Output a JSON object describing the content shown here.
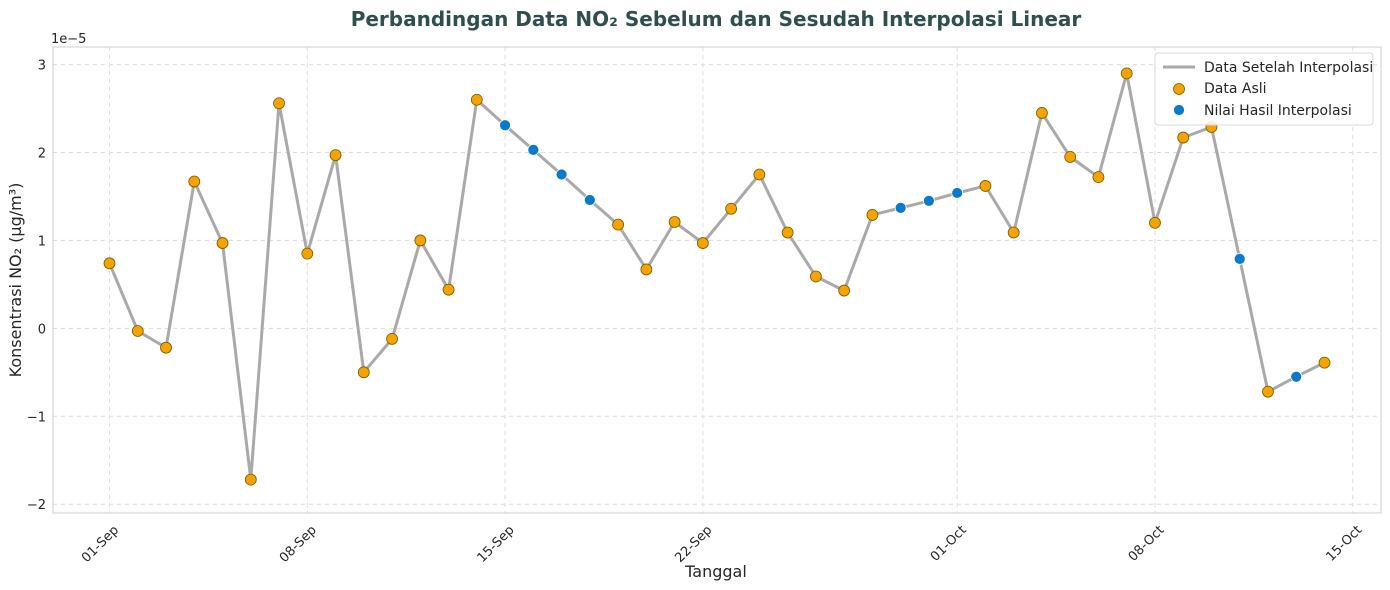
{
  "chart_data": {
    "type": "line",
    "title": "Perbandingan Data NO₂ Sebelum dan Sesudah Interpolasi Linear",
    "xlabel": "Tanggal",
    "ylabel": "Konsentrasi NO₂ (µg/m³)",
    "y_offset_text": "1e−5",
    "xlim": [
      "2023-08-30",
      "2023-10-16"
    ],
    "ylim": [
      -2.1e-05,
      3.2e-05
    ],
    "x_ticks": [
      {
        "date": "2023-09-01",
        "label": "01-Sep"
      },
      {
        "date": "2023-09-08",
        "label": "08-Sep"
      },
      {
        "date": "2023-09-15",
        "label": "15-Sep"
      },
      {
        "date": "2023-09-22",
        "label": "22-Sep"
      },
      {
        "date": "2023-10-01",
        "label": "01-Oct"
      },
      {
        "date": "2023-10-08",
        "label": "08-Oct"
      },
      {
        "date": "2023-10-15",
        "label": "15-Oct"
      }
    ],
    "y_ticks": [
      {
        "value": -2e-05,
        "label": "−2"
      },
      {
        "value": -1e-05,
        "label": "−1"
      },
      {
        "value": 0,
        "label": "0"
      },
      {
        "value": 1e-05,
        "label": "1"
      },
      {
        "value": 2e-05,
        "label": "2"
      },
      {
        "value": 3e-05,
        "label": "3"
      }
    ],
    "grid": true,
    "legend_position": "top-right",
    "colors": {
      "line": "#a9a9a9",
      "original": "#f5a300",
      "original_edge": "#7a5a00",
      "interpolated": "#0a7acb",
      "title": "#2f4f4f"
    },
    "series": [
      {
        "name": "Data Setelah Interpolasi",
        "style": "line",
        "points": [
          [
            "2023-09-01",
            7.4e-06
          ],
          [
            "2023-09-02",
            -3e-07
          ],
          [
            "2023-09-03",
            -2.2e-06
          ],
          [
            "2023-09-04",
            1.67e-05
          ],
          [
            "2023-09-05",
            9.7e-06
          ],
          [
            "2023-09-06",
            -1.72e-05
          ],
          [
            "2023-09-07",
            2.56e-05
          ],
          [
            "2023-09-08",
            8.5e-06
          ],
          [
            "2023-09-09",
            1.97e-05
          ],
          [
            "2023-09-10",
            -5e-06
          ],
          [
            "2023-09-11",
            -1.2e-06
          ],
          [
            "2023-09-12",
            1e-05
          ],
          [
            "2023-09-13",
            4.4e-06
          ],
          [
            "2023-09-14",
            2.6e-05
          ],
          [
            "2023-09-15",
            2.31e-05
          ],
          [
            "2023-09-16",
            2.03e-05
          ],
          [
            "2023-09-17",
            1.75e-05
          ],
          [
            "2023-09-18",
            1.46e-05
          ],
          [
            "2023-09-19",
            1.18e-05
          ],
          [
            "2023-09-20",
            6.7e-06
          ],
          [
            "2023-09-21",
            1.21e-05
          ],
          [
            "2023-09-22",
            9.7e-06
          ],
          [
            "2023-09-23",
            1.36e-05
          ],
          [
            "2023-09-24",
            1.75e-05
          ],
          [
            "2023-09-25",
            1.09e-05
          ],
          [
            "2023-09-26",
            5.9e-06
          ],
          [
            "2023-09-27",
            4.3e-06
          ],
          [
            "2023-09-28",
            1.29e-05
          ],
          [
            "2023-09-29",
            1.37e-05
          ],
          [
            "2023-09-30",
            1.45e-05
          ],
          [
            "2023-10-01",
            1.54e-05
          ],
          [
            "2023-10-02",
            1.62e-05
          ],
          [
            "2023-10-03",
            1.09e-05
          ],
          [
            "2023-10-04",
            2.45e-05
          ],
          [
            "2023-10-05",
            1.95e-05
          ],
          [
            "2023-10-06",
            1.72e-05
          ],
          [
            "2023-10-07",
            2.9e-05
          ],
          [
            "2023-10-08",
            1.2e-05
          ],
          [
            "2023-10-09",
            2.17e-05
          ],
          [
            "2023-10-10",
            2.29e-05
          ],
          [
            "2023-10-11",
            7.9e-06
          ],
          [
            "2023-10-12",
            -7.2e-06
          ],
          [
            "2023-10-13",
            -5.5e-06
          ],
          [
            "2023-10-14",
            -3.9e-06
          ]
        ]
      },
      {
        "name": "Data Asli",
        "style": "scatter",
        "points": [
          [
            "2023-09-01",
            7.4e-06
          ],
          [
            "2023-09-02",
            -3e-07
          ],
          [
            "2023-09-03",
            -2.2e-06
          ],
          [
            "2023-09-04",
            1.67e-05
          ],
          [
            "2023-09-05",
            9.7e-06
          ],
          [
            "2023-09-06",
            -1.72e-05
          ],
          [
            "2023-09-07",
            2.56e-05
          ],
          [
            "2023-09-08",
            8.5e-06
          ],
          [
            "2023-09-09",
            1.97e-05
          ],
          [
            "2023-09-10",
            -5e-06
          ],
          [
            "2023-09-11",
            -1.2e-06
          ],
          [
            "2023-09-12",
            1e-05
          ],
          [
            "2023-09-13",
            4.4e-06
          ],
          [
            "2023-09-14",
            2.6e-05
          ],
          [
            "2023-09-19",
            1.18e-05
          ],
          [
            "2023-09-20",
            6.7e-06
          ],
          [
            "2023-09-21",
            1.21e-05
          ],
          [
            "2023-09-22",
            9.7e-06
          ],
          [
            "2023-09-23",
            1.36e-05
          ],
          [
            "2023-09-24",
            1.75e-05
          ],
          [
            "2023-09-25",
            1.09e-05
          ],
          [
            "2023-09-26",
            5.9e-06
          ],
          [
            "2023-09-27",
            4.3e-06
          ],
          [
            "2023-09-28",
            1.29e-05
          ],
          [
            "2023-10-02",
            1.62e-05
          ],
          [
            "2023-10-03",
            1.09e-05
          ],
          [
            "2023-10-04",
            2.45e-05
          ],
          [
            "2023-10-05",
            1.95e-05
          ],
          [
            "2023-10-06",
            1.72e-05
          ],
          [
            "2023-10-07",
            2.9e-05
          ],
          [
            "2023-10-08",
            1.2e-05
          ],
          [
            "2023-10-09",
            2.17e-05
          ],
          [
            "2023-10-10",
            2.29e-05
          ],
          [
            "2023-10-12",
            -7.2e-06
          ],
          [
            "2023-10-14",
            -3.9e-06
          ]
        ]
      },
      {
        "name": "Nilai Hasil Interpolasi",
        "style": "scatter",
        "points": [
          [
            "2023-09-15",
            2.31e-05
          ],
          [
            "2023-09-16",
            2.03e-05
          ],
          [
            "2023-09-17",
            1.75e-05
          ],
          [
            "2023-09-18",
            1.46e-05
          ],
          [
            "2023-09-29",
            1.37e-05
          ],
          [
            "2023-09-30",
            1.45e-05
          ],
          [
            "2023-10-01",
            1.54e-05
          ],
          [
            "2023-10-11",
            7.9e-06
          ],
          [
            "2023-10-13",
            -5.5e-06
          ]
        ]
      }
    ]
  }
}
